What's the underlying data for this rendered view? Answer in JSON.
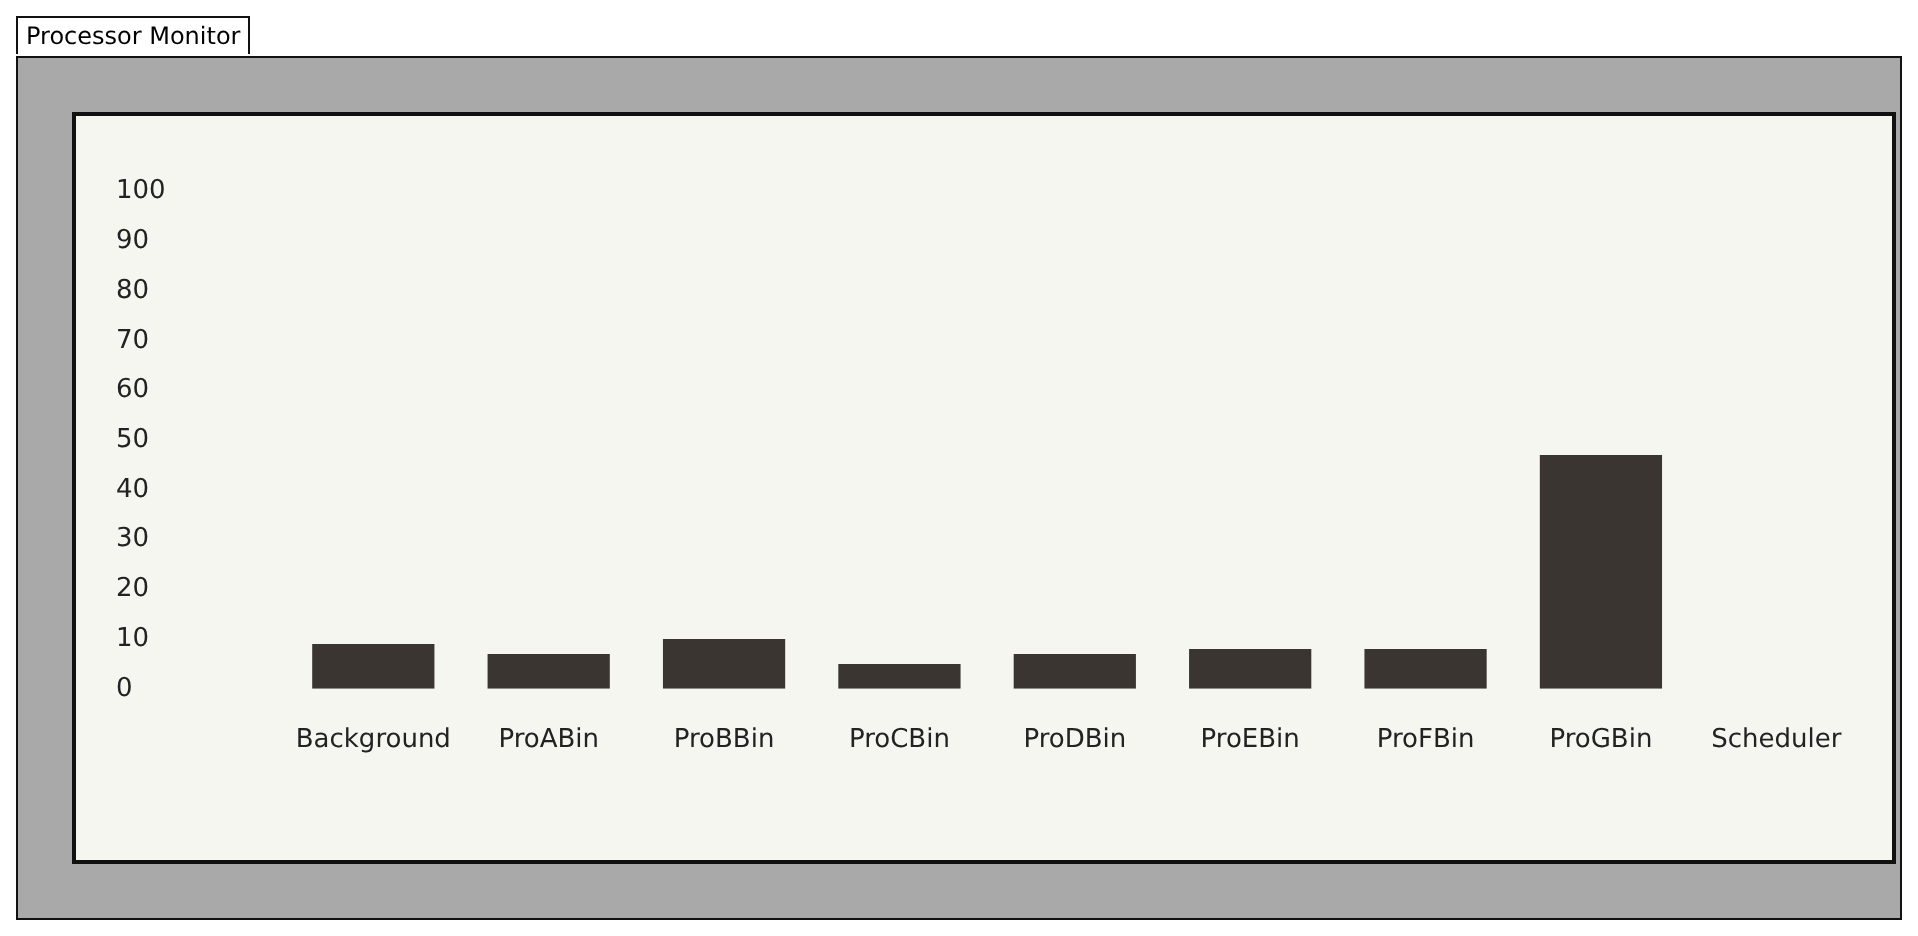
{
  "chart_data": {
    "type": "bar",
    "title": "Processor Monitor",
    "categories": [
      "Background",
      "ProABin",
      "ProBBin",
      "ProCBin",
      "ProDBin",
      "ProEBin",
      "ProFBin",
      "ProGBin",
      "Scheduler"
    ],
    "values": [
      9,
      7,
      10,
      5,
      7,
      8,
      8,
      47,
      0
    ],
    "color": "#3a3530",
    "ylim": [
      0,
      100
    ],
    "yticks": [
      0,
      10,
      20,
      30,
      40,
      50,
      60,
      70,
      80,
      90,
      100
    ],
    "grid": false,
    "legend": false
  }
}
